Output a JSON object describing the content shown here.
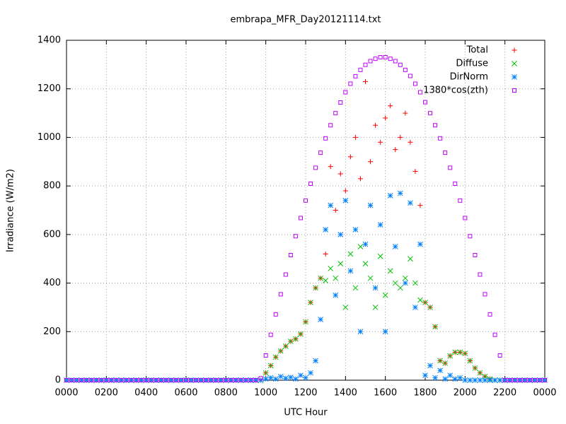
{
  "chart_data": {
    "type": "scatter",
    "title": "embrapa_MFR_Day20121114.txt",
    "x_label": "UTC Hour",
    "y_label": "Irradiance (W/m2)",
    "xlim": [
      0,
      24
    ],
    "ylim": [
      0,
      1400
    ],
    "xticks": [
      {
        "value": 0,
        "label": "0000"
      },
      {
        "value": 2,
        "label": "0200"
      },
      {
        "value": 4,
        "label": "0400"
      },
      {
        "value": 6,
        "label": "0600"
      },
      {
        "value": 8,
        "label": "0800"
      },
      {
        "value": 10,
        "label": "1000"
      },
      {
        "value": 12,
        "label": "1200"
      },
      {
        "value": 14,
        "label": "1400"
      },
      {
        "value": 16,
        "label": "1600"
      },
      {
        "value": 18,
        "label": "1800"
      },
      {
        "value": 20,
        "label": "2000"
      },
      {
        "value": 22,
        "label": "2200"
      },
      {
        "value": 24,
        "label": "0000"
      }
    ],
    "yticks": [
      0,
      200,
      400,
      600,
      800,
      1000,
      1200,
      1400
    ],
    "grid": true,
    "legend": "top-right",
    "x": [
      0,
      0.25,
      0.5,
      0.75,
      1,
      1.25,
      1.5,
      1.75,
      2,
      2.25,
      2.5,
      2.75,
      3,
      3.25,
      3.5,
      3.75,
      4,
      4.25,
      4.5,
      4.75,
      5,
      5.25,
      5.5,
      5.75,
      6,
      6.25,
      6.5,
      6.75,
      7,
      7.25,
      7.5,
      7.75,
      8,
      8.25,
      8.5,
      8.75,
      9,
      9.25,
      9.5,
      9.75,
      10,
      10.25,
      10.5,
      10.75,
      11,
      11.25,
      11.5,
      11.75,
      12,
      12.25,
      12.5,
      12.75,
      13,
      13.25,
      13.5,
      13.75,
      14,
      14.25,
      14.5,
      14.75,
      15,
      15.25,
      15.5,
      15.75,
      16,
      16.25,
      16.5,
      16.75,
      17,
      17.25,
      17.5,
      17.75,
      18,
      18.25,
      18.5,
      18.75,
      19,
      19.25,
      19.5,
      19.75,
      20,
      20.25,
      20.5,
      20.75,
      21,
      21.25,
      21.5,
      21.75,
      22,
      22.25,
      22.5,
      22.75,
      23,
      23.25,
      23.5,
      23.75,
      24
    ],
    "series": [
      {
        "name": "Total",
        "color": "#ff0000",
        "marker": "plus",
        "values": [
          0,
          0,
          0,
          0,
          0,
          0,
          0,
          0,
          0,
          0,
          0,
          0,
          0,
          0,
          0,
          0,
          0,
          0,
          0,
          0,
          0,
          0,
          0,
          0,
          0,
          0,
          0,
          0,
          0,
          0,
          0,
          0,
          0,
          0,
          0,
          0,
          0,
          0,
          0,
          0,
          30,
          60,
          95,
          120,
          140,
          160,
          170,
          190,
          240,
          320,
          380,
          420,
          520,
          880,
          700,
          850,
          780,
          920,
          1000,
          830,
          1230,
          900,
          1050,
          980,
          1080,
          1130,
          950,
          1000,
          1100,
          980,
          860,
          720,
          320,
          300,
          220,
          80,
          70,
          100,
          115,
          115,
          110,
          80,
          50,
          30,
          15,
          5,
          0,
          0,
          0,
          0,
          0,
          0,
          0,
          0,
          0,
          0,
          0
        ]
      },
      {
        "name": "Diffuse",
        "color": "#00c000",
        "marker": "cross",
        "values": [
          0,
          0,
          0,
          0,
          0,
          0,
          0,
          0,
          0,
          0,
          0,
          0,
          0,
          0,
          0,
          0,
          0,
          0,
          0,
          0,
          0,
          0,
          0,
          0,
          0,
          0,
          0,
          0,
          0,
          0,
          0,
          0,
          0,
          0,
          0,
          0,
          0,
          0,
          0,
          0,
          30,
          60,
          95,
          120,
          140,
          160,
          170,
          190,
          240,
          320,
          380,
          420,
          410,
          460,
          420,
          480,
          300,
          520,
          380,
          550,
          480,
          420,
          300,
          510,
          350,
          450,
          400,
          380,
          420,
          500,
          400,
          330,
          320,
          300,
          220,
          80,
          70,
          100,
          115,
          115,
          110,
          80,
          50,
          30,
          15,
          5,
          0,
          0,
          0,
          0,
          0,
          0,
          0,
          0,
          0,
          0,
          0
        ]
      },
      {
        "name": "DirNorm",
        "color": "#0080ff",
        "marker": "star",
        "values": [
          0,
          0,
          0,
          0,
          0,
          0,
          0,
          0,
          0,
          0,
          0,
          0,
          0,
          0,
          0,
          0,
          0,
          0,
          0,
          0,
          0,
          0,
          0,
          0,
          0,
          0,
          0,
          0,
          0,
          0,
          0,
          0,
          0,
          0,
          0,
          0,
          0,
          0,
          0,
          0,
          5,
          10,
          5,
          15,
          8,
          12,
          5,
          20,
          10,
          30,
          80,
          250,
          620,
          720,
          350,
          600,
          740,
          450,
          620,
          200,
          560,
          720,
          380,
          640,
          200,
          760,
          550,
          770,
          400,
          730,
          300,
          560,
          20,
          60,
          10,
          40,
          5,
          20,
          5,
          10,
          0,
          0,
          0,
          0,
          0,
          0,
          0,
          0,
          0,
          0,
          0,
          0,
          0,
          0,
          0,
          0,
          0
        ]
      },
      {
        "name": "1380*cos(zth)",
        "color": "#c000ff",
        "marker": "square",
        "values": [
          0,
          0,
          0,
          0,
          0,
          0,
          0,
          0,
          0,
          0,
          0,
          0,
          0,
          0,
          0,
          0,
          0,
          0,
          0,
          0,
          0,
          0,
          0,
          0,
          0,
          0,
          0,
          0,
          0,
          0,
          0,
          0,
          0,
          0,
          0,
          0,
          0,
          0,
          0,
          8,
          102,
          187,
          271,
          354,
          435,
          515,
          593,
          668,
          740,
          809,
          875,
          937,
          996,
          1050,
          1100,
          1144,
          1186,
          1221,
          1252,
          1278,
          1299,
          1314,
          1324,
          1330,
          1330,
          1324,
          1314,
          1299,
          1278,
          1253,
          1221,
          1186,
          1145,
          1100,
          1050,
          996,
          937,
          875,
          809,
          740,
          668,
          593,
          515,
          435,
          354,
          271,
          187,
          102,
          0,
          0,
          0,
          0,
          0,
          0,
          0,
          0,
          0
        ]
      }
    ]
  }
}
